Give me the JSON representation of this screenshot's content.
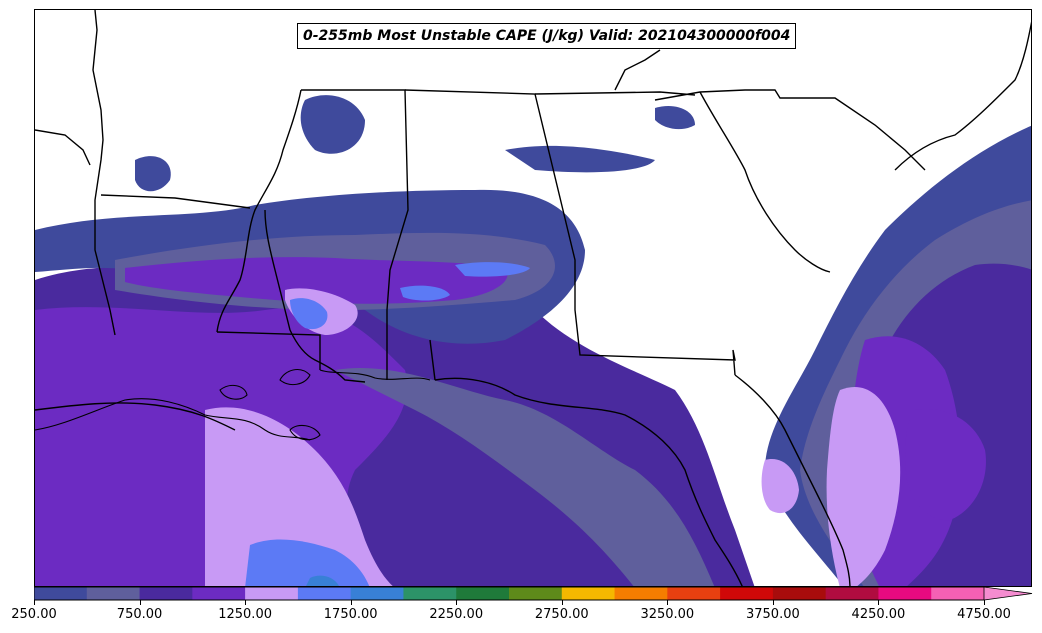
{
  "title": "0-255mb Most Unstable CAPE (J/kg) Valid: 202104300000f004",
  "colorbar": {
    "colors": [
      "#3f4a9c",
      "#5f5f9c",
      "#4a2a9e",
      "#6c2bc2",
      "#c89af5",
      "#5c7af5",
      "#3880d6",
      "#2c9368",
      "#1f7a3a",
      "#5e8a1a",
      "#f5b800",
      "#f57d00",
      "#e84010",
      "#d00808",
      "#a80c0c",
      "#b00c40",
      "#e80a80",
      "#f560b4"
    ],
    "extend_color": "#f58cd0",
    "tick_labels": [
      "250.00",
      "750.00",
      "1250.00",
      "1750.00",
      "2250.00",
      "2750.00",
      "3250.00",
      "3750.00",
      "4250.00",
      "4750.00"
    ]
  },
  "legend_icons": {
    "map": "cape-contour-map",
    "borders": "state-border-lines"
  }
}
